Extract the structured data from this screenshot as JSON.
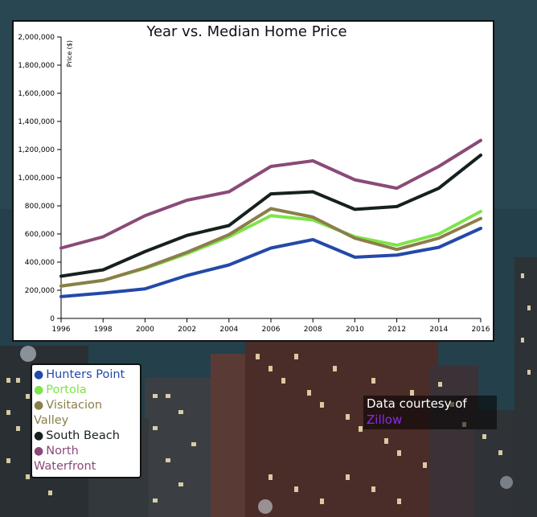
{
  "chart_data": {
    "type": "line",
    "title": "Year vs. Median Home Price",
    "xlabel": "",
    "ylabel": "Price ($)",
    "x": [
      1996,
      1998,
      2000,
      2002,
      2004,
      2006,
      2008,
      2010,
      2012,
      2014,
      2016
    ],
    "xlim": [
      1996,
      2016
    ],
    "ylim": [
      0,
      2000000
    ],
    "y_ticks": [
      0,
      200000,
      400000,
      600000,
      800000,
      1000000,
      1200000,
      1400000,
      1600000,
      1800000,
      2000000
    ],
    "y_tick_labels": [
      "0",
      "200,000",
      "400,000",
      "600,000",
      "800,000",
      "1,000,000",
      "1,200,000",
      "1,400,000",
      "1,600,000",
      "1,800,000",
      "2,000,000"
    ],
    "grid": false,
    "legend": "bottom-left",
    "series": [
      {
        "name": "Hunters Point",
        "color": "#2349a8",
        "values": [
          155000,
          180000,
          210000,
          305000,
          380000,
          500000,
          560000,
          435000,
          450000,
          505000,
          640000
        ]
      },
      {
        "name": "Portola",
        "color": "#7fe34a",
        "values": [
          230000,
          270000,
          355000,
          460000,
          580000,
          730000,
          700000,
          580000,
          520000,
          600000,
          760000
        ]
      },
      {
        "name": "Visitacion Valley",
        "color": "#8b7e4a",
        "values": [
          230000,
          270000,
          360000,
          470000,
          595000,
          780000,
          720000,
          570000,
          490000,
          570000,
          710000
        ]
      },
      {
        "name": "South Beach",
        "color": "#16211f",
        "values": [
          300000,
          345000,
          475000,
          590000,
          660000,
          885000,
          900000,
          775000,
          795000,
          925000,
          1160000
        ]
      },
      {
        "name": "North Waterfront",
        "color": "#8a4a78",
        "values": [
          500000,
          580000,
          730000,
          840000,
          900000,
          1080000,
          1120000,
          985000,
          925000,
          1080000,
          1265000
        ]
      }
    ]
  },
  "legend_items": [
    "Hunters Point",
    "Portola",
    "Visitacion Valley",
    "South Beach",
    "North Waterfront"
  ],
  "credit": {
    "text": "Data courtesy of",
    "link": "Zillow"
  }
}
